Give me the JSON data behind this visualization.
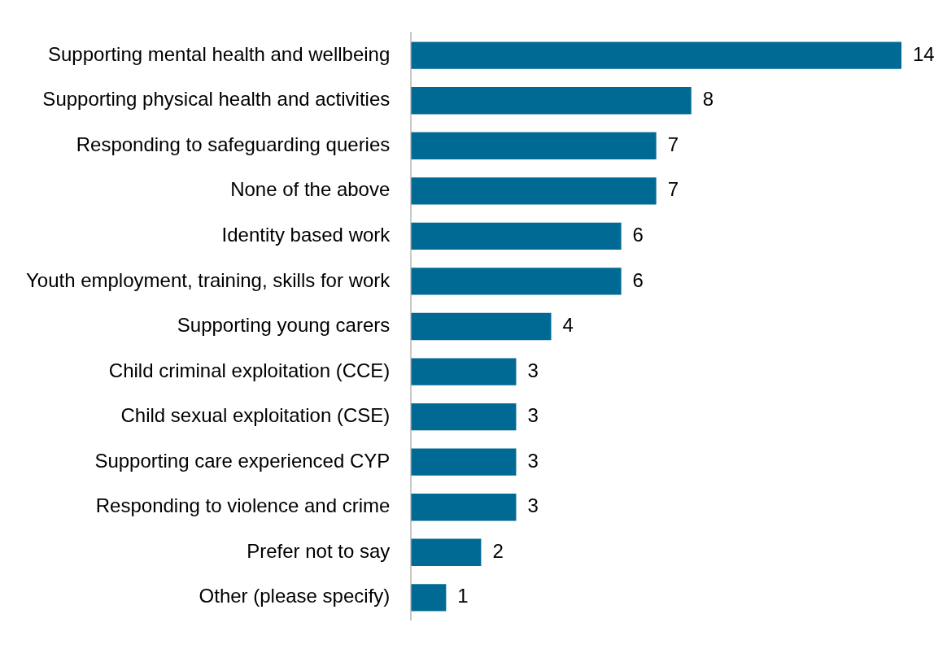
{
  "chart_data": {
    "type": "bar",
    "orientation": "horizontal",
    "data_labels": true,
    "color": "#006a94",
    "categories": [
      "Supporting mental health and wellbeing",
      "Supporting physical health and activities",
      "Responding to safeguarding queries",
      "None of the above",
      "Identity based work",
      "Youth employment, training, skills for work",
      "Supporting young carers",
      "Child criminal exploitation (CCE)",
      "Child sexual exploitation (CSE)",
      "Supporting care experienced CYP",
      "Responding to violence and crime",
      "Prefer not to say",
      "Other (please specify)"
    ],
    "values": [
      14,
      8,
      7,
      7,
      6,
      6,
      4,
      3,
      3,
      3,
      3,
      2,
      1
    ]
  }
}
